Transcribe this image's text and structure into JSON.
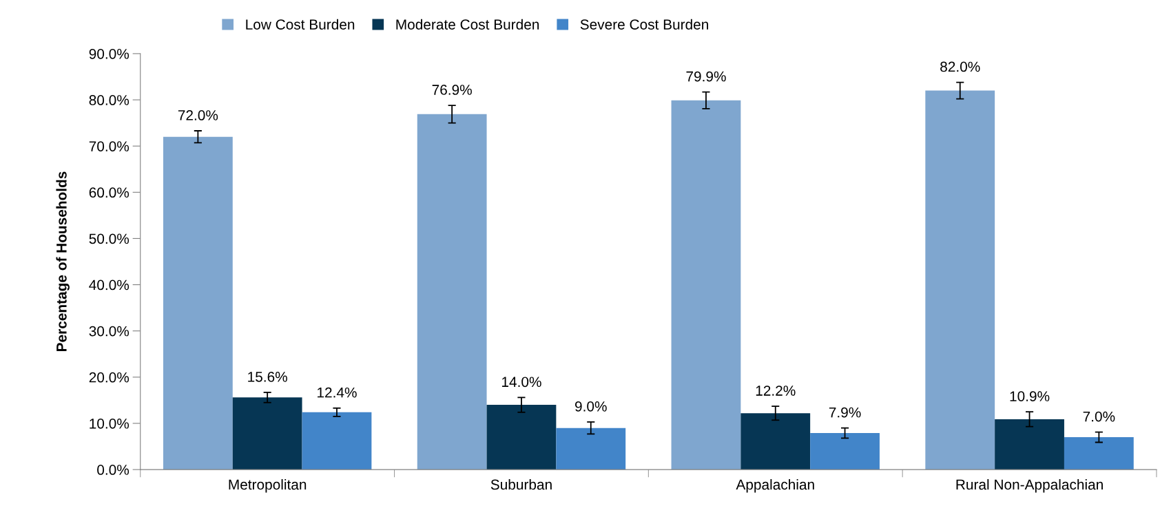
{
  "chart_data": {
    "type": "bar",
    "ylabel": "Percentage of Households",
    "categories": [
      "Metropolitan",
      "Suburban",
      "Appalachian",
      "Rural Non-Appalachian"
    ],
    "series": [
      {
        "name": "Low Cost Burden",
        "color": "#7fa6cf",
        "values": [
          72.0,
          76.9,
          79.9,
          82.0
        ],
        "errors": [
          1.3,
          1.9,
          1.8,
          1.8
        ]
      },
      {
        "name": "Moderate Cost Burden",
        "color": "#063654",
        "values": [
          15.6,
          14.0,
          12.2,
          10.9
        ],
        "errors": [
          1.1,
          1.6,
          1.5,
          1.6
        ]
      },
      {
        "name": "Severe Cost Burden",
        "color": "#4285c9",
        "values": [
          12.4,
          9.0,
          7.9,
          7.0
        ],
        "errors": [
          0.9,
          1.3,
          1.1,
          1.1
        ]
      }
    ],
    "ylim": [
      0,
      90
    ],
    "yticks": [
      {
        "value": 0,
        "label": "0.0%"
      },
      {
        "value": 10,
        "label": "10.0%"
      },
      {
        "value": 20,
        "label": "20.0%"
      },
      {
        "value": 30,
        "label": "30.0%"
      },
      {
        "value": 40,
        "label": "40.0%"
      },
      {
        "value": 50,
        "label": "50.0%"
      },
      {
        "value": 60,
        "label": "60.0%"
      },
      {
        "value": 70,
        "label": "70.0%"
      },
      {
        "value": 80,
        "label": "80.0%"
      },
      {
        "value": 90,
        "label": "90.0%"
      }
    ],
    "value_labels": [
      [
        "72.0%",
        "76.9%",
        "79.9%",
        "82.0%"
      ],
      [
        "15.6%",
        "14.0%",
        "12.2%",
        "10.9%"
      ],
      [
        "12.4%",
        "9.0%",
        "7.9%",
        "7.0%"
      ]
    ],
    "grid": false,
    "legend": "top"
  }
}
